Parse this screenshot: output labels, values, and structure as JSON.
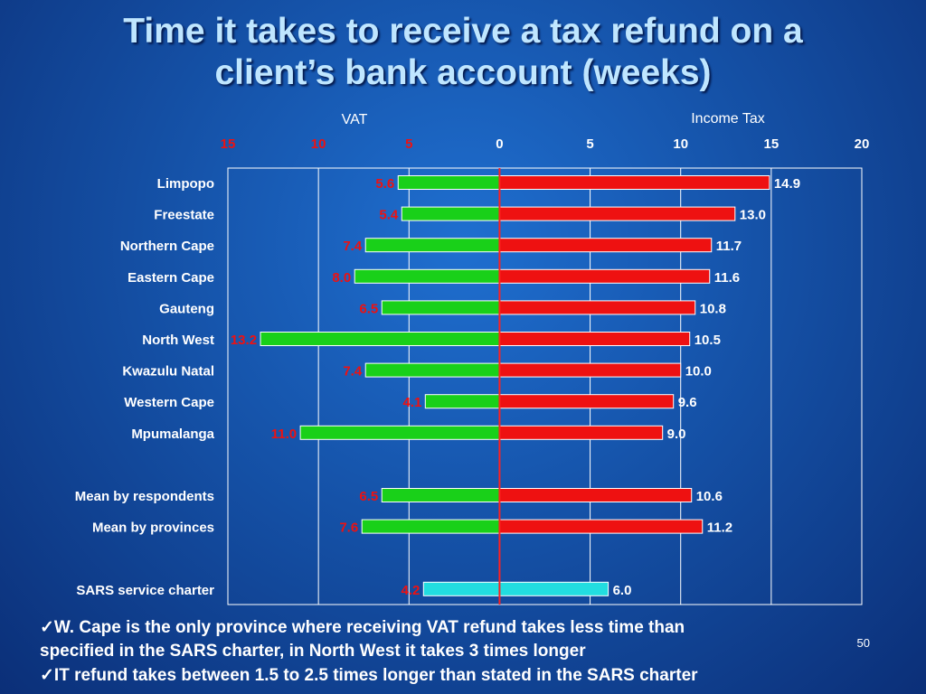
{
  "slide": {
    "title_line1": "Time it takes to receive a tax refund on a",
    "title_line2": "client’s bank account (weeks)",
    "page_number": "50",
    "notes": [
      "✓W. Cape is the only province where receiving VAT refund  takes less time than",
      "specified in the SARS charter, in North West it takes 3 times longer",
      "✓IT refund takes between 1.5 to 2.5 times longer than stated in the SARS charter"
    ]
  },
  "colors": {
    "vat_bar": "#19d019",
    "income_bar": "#ee1111",
    "charter_bar": "#22dde0",
    "vat_label": "#ee1111",
    "income_label": "#ffffff",
    "zero_line": "#ff2020",
    "grid": "#ffffff"
  },
  "chart_data": {
    "type": "bar",
    "orientation": "horizontal-diverging",
    "left_axis_title": "VAT",
    "right_axis_title": "Income Tax",
    "left_ticks": [
      "15",
      "10",
      "5"
    ],
    "right_ticks": [
      "0",
      "5",
      "10",
      "15",
      "20"
    ],
    "xlim": [
      -15,
      20
    ],
    "grid": true,
    "categories": [
      "Limpopo",
      "Freestate",
      "Northern Cape",
      "Eastern Cape",
      "Gauteng",
      "North West",
      "Kwazulu Natal",
      "Western Cape",
      "Mpumalanga",
      "",
      "Mean by respondents",
      "Mean by provinces",
      "",
      "SARS service charter"
    ],
    "series": [
      {
        "name": "VAT",
        "values": [
          5.6,
          5.4,
          7.4,
          8.0,
          6.5,
          13.2,
          7.4,
          4.1,
          11.0,
          null,
          6.5,
          7.6,
          null,
          4.2
        ]
      },
      {
        "name": "Income Tax",
        "values": [
          14.9,
          13.0,
          11.7,
          11.6,
          10.8,
          10.5,
          10.0,
          9.6,
          9.0,
          null,
          10.6,
          11.2,
          null,
          6.0
        ]
      }
    ],
    "vat_labels": [
      "5.6",
      "5.4",
      "7.4",
      "8.0",
      "6.5",
      "13.2",
      "7.4",
      "4.1",
      "11.0",
      "",
      "6.5",
      "7.6",
      "",
      "4.2"
    ],
    "income_labels": [
      "14.9",
      "13.0",
      "11.7",
      "11.6",
      "10.8",
      "10.5",
      "10.0",
      "9.6",
      "9.0",
      "",
      "10.6",
      "11.2",
      "",
      "6.0"
    ],
    "highlight_category": "SARS service charter"
  }
}
